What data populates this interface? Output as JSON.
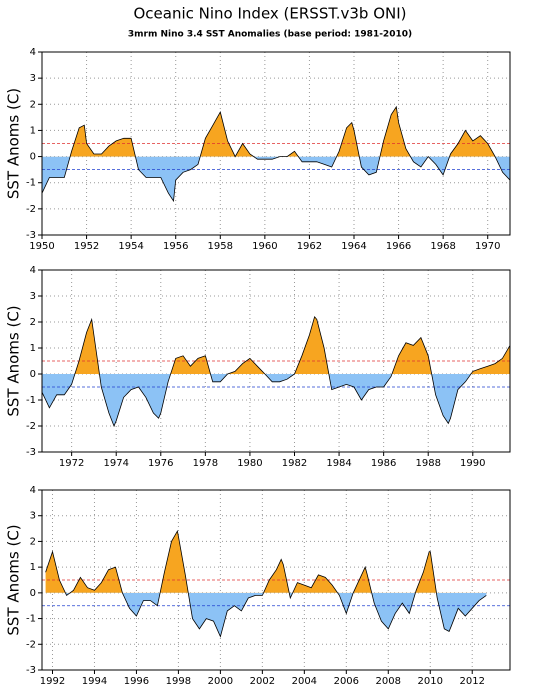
{
  "chart_data": [
    {
      "type": "area",
      "title": "Oceanic Nino Index (ERSST.v3b ONI)",
      "subtitle": "3mrm Nino 3.4 SST Anomalies (base period: 1981-2010)",
      "ylabel": "SST Anoms (C)",
      "xlim": [
        1950,
        1971
      ],
      "ylim": [
        -3,
        4
      ],
      "yticks": [
        -3,
        -2,
        -1,
        0,
        1,
        2,
        3,
        4
      ],
      "xticks": [
        1950,
        1952,
        1954,
        1956,
        1958,
        1960,
        1962,
        1964,
        1966,
        1968,
        1970
      ],
      "pos_color": "#f7a520",
      "neg_color": "#8cc2f5",
      "ref_lines": [
        {
          "value": 0.5,
          "color": "#e03030"
        },
        {
          "value": -0.5,
          "color": "#2040d0"
        }
      ],
      "grid": true,
      "x": [
        1950,
        1950.33,
        1950.67,
        1951,
        1951.33,
        1951.67,
        1951.9,
        1952,
        1952.33,
        1952.67,
        1953,
        1953.33,
        1953.67,
        1954,
        1954.33,
        1954.67,
        1955,
        1955.33,
        1955.67,
        1955.9,
        1956,
        1956.33,
        1956.67,
        1957,
        1957.33,
        1957.67,
        1958,
        1958.33,
        1958.67,
        1959,
        1959.33,
        1959.67,
        1960,
        1960.33,
        1960.67,
        1961,
        1961.33,
        1961.67,
        1962,
        1962.33,
        1962.67,
        1963,
        1963.33,
        1963.67,
        1963.9,
        1964,
        1964.33,
        1964.67,
        1965,
        1965.33,
        1965.67,
        1965.9,
        1966,
        1966.33,
        1966.67,
        1967,
        1967.33,
        1967.67,
        1968,
        1968.33,
        1968.67,
        1969,
        1969.33,
        1969.67,
        1970,
        1970.33,
        1970.67,
        1971
      ],
      "values": [
        -1.4,
        -0.8,
        -0.8,
        -0.8,
        0.2,
        1.1,
        1.2,
        0.5,
        0.1,
        0.1,
        0.4,
        0.6,
        0.7,
        0.7,
        -0.5,
        -0.8,
        -0.8,
        -0.8,
        -1.4,
        -1.7,
        -0.9,
        -0.6,
        -0.5,
        -0.3,
        0.7,
        1.2,
        1.7,
        0.6,
        0.0,
        0.5,
        0.1,
        -0.1,
        -0.1,
        -0.1,
        0.0,
        0.0,
        0.2,
        -0.2,
        -0.2,
        -0.2,
        -0.3,
        -0.4,
        0.2,
        1.1,
        1.3,
        1.0,
        -0.4,
        -0.7,
        -0.6,
        0.6,
        1.6,
        1.9,
        1.3,
        0.3,
        -0.2,
        -0.4,
        0.0,
        -0.3,
        -0.7,
        0.1,
        0.5,
        1.0,
        0.6,
        0.8,
        0.5,
        0.0,
        -0.6,
        -0.9
      ]
    },
    {
      "type": "area",
      "ylabel": "SST Anoms (C)",
      "xlim": [
        1970.67,
        1991.67
      ],
      "ylim": [
        -3,
        4
      ],
      "yticks": [
        -3,
        -2,
        -1,
        0,
        1,
        2,
        3,
        4
      ],
      "xticks": [
        1972,
        1974,
        1976,
        1978,
        1980,
        1982,
        1984,
        1986,
        1988,
        1990
      ],
      "pos_color": "#f7a520",
      "neg_color": "#8cc2f5",
      "ref_lines": [
        {
          "value": 0.5,
          "color": "#e03030"
        },
        {
          "value": -0.5,
          "color": "#2040d0"
        }
      ],
      "grid": true,
      "x": [
        1970.67,
        1971,
        1971.33,
        1971.67,
        1972,
        1972.33,
        1972.67,
        1972.9,
        1973,
        1973.33,
        1973.67,
        1973.9,
        1974,
        1974.33,
        1974.67,
        1975,
        1975.33,
        1975.67,
        1975.9,
        1976,
        1976.33,
        1976.67,
        1977,
        1977.33,
        1977.67,
        1978,
        1978.33,
        1978.67,
        1979,
        1979.33,
        1979.67,
        1980,
        1980.33,
        1980.67,
        1981,
        1981.33,
        1981.67,
        1982,
        1982.33,
        1982.67,
        1982.9,
        1983,
        1983.33,
        1983.67,
        1984,
        1984.33,
        1984.67,
        1985,
        1985.33,
        1985.67,
        1986,
        1986.33,
        1986.67,
        1987,
        1987.33,
        1987.67,
        1988,
        1988.33,
        1988.67,
        1988.9,
        1989,
        1989.33,
        1989.67,
        1990,
        1990.33,
        1990.67,
        1991,
        1991.33,
        1991.67
      ],
      "values": [
        -0.7,
        -1.3,
        -0.8,
        -0.8,
        -0.4,
        0.5,
        1.6,
        2.1,
        1.5,
        -0.5,
        -1.5,
        -2.0,
        -1.8,
        -0.9,
        -0.6,
        -0.5,
        -0.9,
        -1.5,
        -1.7,
        -1.5,
        -0.3,
        0.6,
        0.7,
        0.3,
        0.6,
        0.7,
        -0.3,
        -0.3,
        0.0,
        0.1,
        0.4,
        0.6,
        0.3,
        0.0,
        -0.3,
        -0.3,
        -0.2,
        0.0,
        0.7,
        1.5,
        2.2,
        2.1,
        1.0,
        -0.6,
        -0.5,
        -0.4,
        -0.5,
        -1.0,
        -0.6,
        -0.5,
        -0.5,
        -0.1,
        0.7,
        1.2,
        1.1,
        1.4,
        0.7,
        -0.8,
        -1.6,
        -1.9,
        -1.7,
        -0.6,
        -0.3,
        0.1,
        0.2,
        0.3,
        0.4,
        0.6,
        1.1
      ]
    },
    {
      "type": "area",
      "ylabel": "SST Anoms (C)",
      "xlim": [
        1991.5,
        2013.8
      ],
      "ylim": [
        -3,
        4
      ],
      "yticks": [
        -3,
        -2,
        -1,
        0,
        1,
        2,
        3,
        4
      ],
      "xticks": [
        1992,
        1994,
        1996,
        1998,
        2000,
        2002,
        2004,
        2006,
        2008,
        2010,
        2012
      ],
      "pos_color": "#f7a520",
      "neg_color": "#8cc2f5",
      "ref_lines": [
        {
          "value": 0.5,
          "color": "#e03030"
        },
        {
          "value": -0.5,
          "color": "#2040d0"
        }
      ],
      "grid": true,
      "x": [
        1991.67,
        1992,
        1992.33,
        1992.67,
        1993,
        1993.33,
        1993.67,
        1994,
        1994.33,
        1994.67,
        1995,
        1995.33,
        1995.67,
        1996,
        1996.33,
        1996.67,
        1997,
        1997.33,
        1997.67,
        1997.95,
        1998,
        1998.33,
        1998.67,
        1999,
        1999.33,
        1999.67,
        2000,
        2000.33,
        2000.67,
        2001,
        2001.33,
        2001.67,
        2002,
        2002.33,
        2002.67,
        2002.9,
        2003,
        2003.33,
        2003.67,
        2004,
        2004.33,
        2004.67,
        2005,
        2005.33,
        2005.67,
        2006,
        2006.33,
        2006.67,
        2006.9,
        2007,
        2007.33,
        2007.67,
        2008,
        2008.33,
        2008.67,
        2009,
        2009.33,
        2009.67,
        2009.95,
        2010,
        2010.33,
        2010.67,
        2010.9,
        2011,
        2011.33,
        2011.67,
        2012,
        2012.33,
        2012.67
      ],
      "values": [
        0.8,
        1.6,
        0.5,
        -0.1,
        0.1,
        0.6,
        0.2,
        0.1,
        0.4,
        0.9,
        1.0,
        0.0,
        -0.6,
        -0.9,
        -0.3,
        -0.3,
        -0.5,
        0.8,
        2.0,
        2.4,
        2.2,
        0.7,
        -1.0,
        -1.4,
        -1.0,
        -1.1,
        -1.7,
        -0.7,
        -0.5,
        -0.7,
        -0.2,
        -0.1,
        -0.1,
        0.5,
        0.9,
        1.3,
        1.1,
        -0.2,
        0.4,
        0.3,
        0.2,
        0.7,
        0.6,
        0.3,
        -0.1,
        -0.8,
        0.0,
        0.6,
        1.0,
        0.7,
        -0.4,
        -1.1,
        -1.4,
        -0.8,
        -0.4,
        -0.8,
        0.1,
        0.8,
        1.6,
        1.6,
        -0.2,
        -1.4,
        -1.5,
        -1.3,
        -0.6,
        -0.9,
        -0.6,
        -0.3,
        -0.1
      ]
    }
  ]
}
